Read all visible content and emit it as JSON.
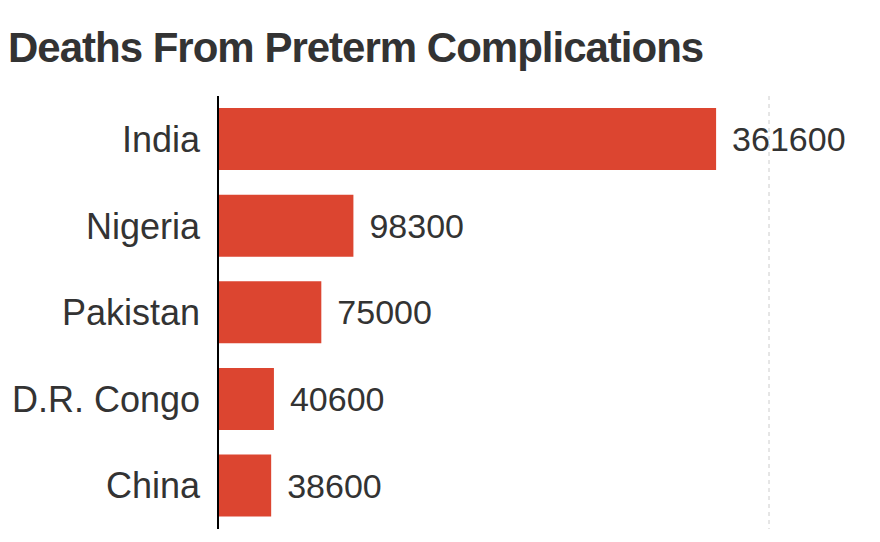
{
  "chart_data": {
    "type": "bar",
    "title": "Deaths From Preterm Complications",
    "orientation": "horizontal",
    "categories": [
      "India",
      "Nigeria",
      "Pakistan",
      "D.R. Congo",
      "China"
    ],
    "values": [
      361600,
      98300,
      75000,
      40600,
      38600
    ],
    "color": "#dc4530",
    "xlim": [
      0,
      400000
    ],
    "xticks": [
      0,
      100000,
      200000,
      300000,
      400000
    ],
    "grid": true,
    "data_labels": true,
    "tick_labels": "y"
  }
}
